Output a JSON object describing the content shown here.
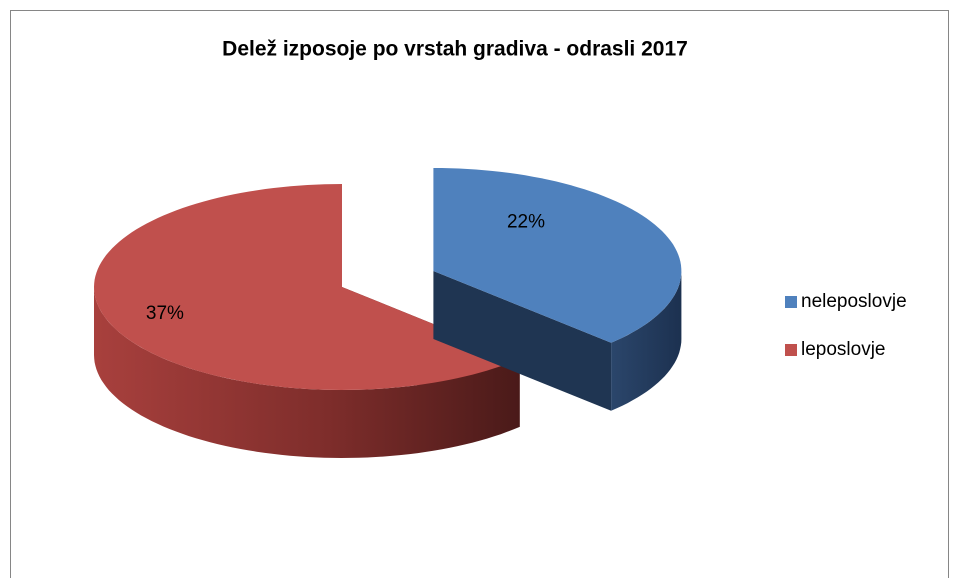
{
  "chart_data": {
    "type": "pie",
    "title": "Delež izposoje po vrstah gradiva -  odrasli 2017",
    "categories": [
      "neleposlovje",
      "leposlovje"
    ],
    "values": [
      22,
      37
    ],
    "value_labels": [
      "22%",
      "37%"
    ],
    "colors": [
      "#4f81bd",
      "#c0504d"
    ],
    "legend": "right"
  }
}
